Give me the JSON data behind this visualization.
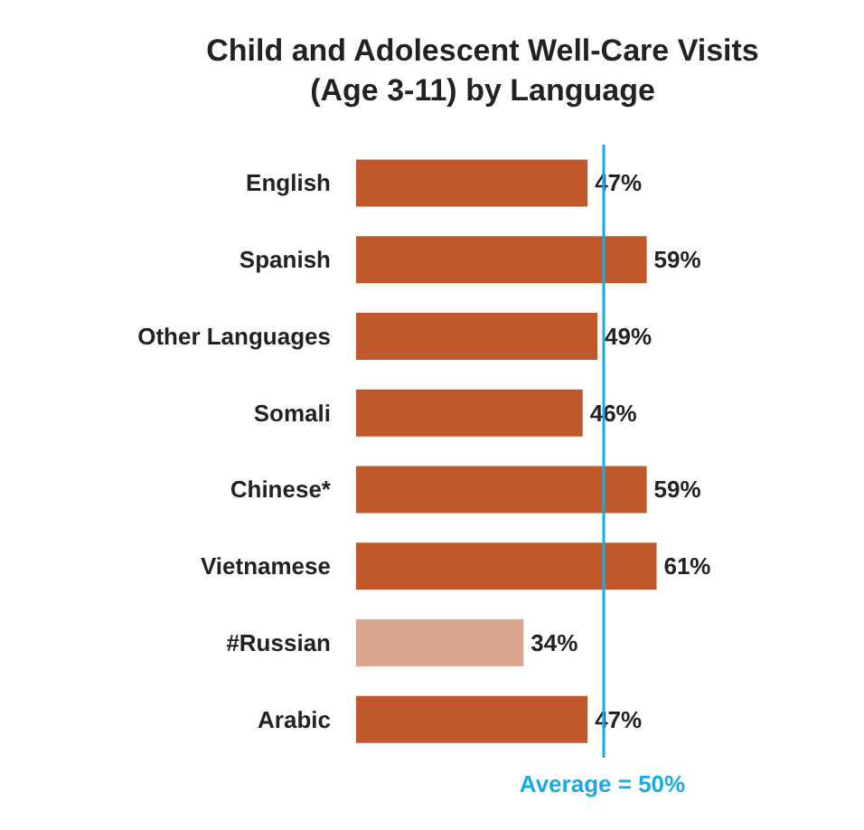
{
  "chart_data": {
    "type": "bar",
    "orientation": "horizontal",
    "title": "Child and Adolescent Well-Care Visits\n(Age 3-11) by Language",
    "categories": [
      "English",
      "Spanish",
      "Other Languages",
      "Somali",
      "Chinese*",
      "Vietnamese",
      "#Russian",
      "Arabic"
    ],
    "values": [
      47,
      59,
      49,
      46,
      59,
      61,
      34,
      47
    ],
    "colors": [
      "#c0582b",
      "#c0582b",
      "#c0582b",
      "#c0582b",
      "#c0582b",
      "#c0582b",
      "#d8a68c",
      "#c0582b"
    ],
    "value_labels": [
      "47%",
      "59%",
      "49%",
      "46%",
      "59%",
      "61%",
      "34%",
      "47%"
    ],
    "ref_lines": [
      {
        "axis": "x",
        "value": 50,
        "label": "Average = 50%",
        "color": "#1ba9e1"
      }
    ]
  }
}
